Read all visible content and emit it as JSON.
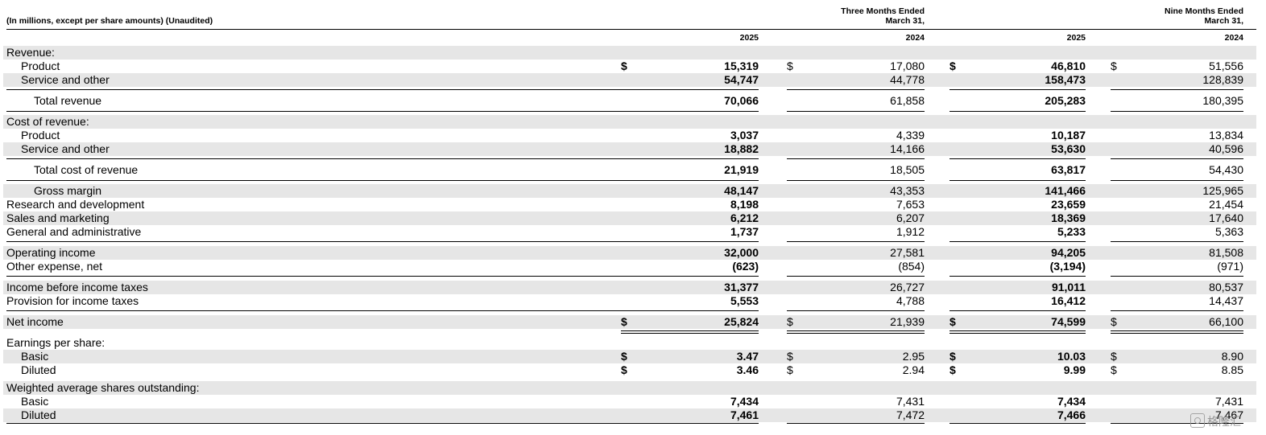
{
  "header": {
    "units_note": "(In millions, except per share amounts) (Unaudited)",
    "three_months": "Three Months Ended",
    "nine_months": "Nine Months Ended",
    "period_end": "March 31,",
    "years": [
      "2025",
      "2024",
      "2025",
      "2024"
    ]
  },
  "rows": [
    {
      "label": "Revenue:",
      "values": [
        "",
        "",
        "",
        ""
      ],
      "dollar": false
    },
    {
      "label": "Product",
      "values": [
        "15,319",
        "17,080",
        "46,810",
        "51,556"
      ],
      "dollar": true
    },
    {
      "label": "Service and other",
      "values": [
        "54,747",
        "44,778",
        "158,473",
        "128,839"
      ],
      "dollar": false
    },
    {
      "label": "Total revenue",
      "values": [
        "70,066",
        "61,858",
        "205,283",
        "180,395"
      ],
      "dollar": false
    },
    {
      "label": "Cost of revenue:",
      "values": [
        "",
        "",
        "",
        ""
      ],
      "dollar": false
    },
    {
      "label": "Product",
      "values": [
        "3,037",
        "4,339",
        "10,187",
        "13,834"
      ],
      "dollar": false
    },
    {
      "label": "Service and other",
      "values": [
        "18,882",
        "14,166",
        "53,630",
        "40,596"
      ],
      "dollar": false
    },
    {
      "label": "Total cost of revenue",
      "values": [
        "21,919",
        "18,505",
        "63,817",
        "54,430"
      ],
      "dollar": false
    },
    {
      "label": "Gross margin",
      "values": [
        "48,147",
        "43,353",
        "141,466",
        "125,965"
      ],
      "dollar": false
    },
    {
      "label": "Research and development",
      "values": [
        "8,198",
        "7,653",
        "23,659",
        "21,454"
      ],
      "dollar": false
    },
    {
      "label": "Sales and marketing",
      "values": [
        "6,212",
        "6,207",
        "18,369",
        "17,640"
      ],
      "dollar": false
    },
    {
      "label": "General and administrative",
      "values": [
        "1,737",
        "1,912",
        "5,233",
        "5,363"
      ],
      "dollar": false
    },
    {
      "label": "Operating income",
      "values": [
        "32,000",
        "27,581",
        "94,205",
        "81,508"
      ],
      "dollar": false
    },
    {
      "label": "Other expense, net",
      "values": [
        "(623)",
        "(854)",
        "(3,194)",
        "(971)"
      ],
      "dollar": false
    },
    {
      "label": "Income before income taxes",
      "values": [
        "31,377",
        "26,727",
        "91,011",
        "80,537"
      ],
      "dollar": false
    },
    {
      "label": "Provision for income taxes",
      "values": [
        "5,553",
        "4,788",
        "16,412",
        "14,437"
      ],
      "dollar": false
    },
    {
      "label": "Net income",
      "values": [
        "25,824",
        "21,939",
        "74,599",
        "66,100"
      ],
      "dollar": true
    },
    {
      "label": "Earnings per share:",
      "values": [
        "",
        "",
        "",
        ""
      ],
      "dollar": false
    },
    {
      "label": "Basic",
      "values": [
        "3.47",
        "2.95",
        "10.03",
        "8.90"
      ],
      "dollar": true
    },
    {
      "label": "Diluted",
      "values": [
        "3.46",
        "2.94",
        "9.99",
        "8.85"
      ],
      "dollar": true
    },
    {
      "label": "Weighted average shares outstanding:",
      "values": [
        "",
        "",
        "",
        ""
      ],
      "dollar": false
    },
    {
      "label": "Basic",
      "values": [
        "7,434",
        "7,431",
        "7,434",
        "7,431"
      ],
      "dollar": false
    },
    {
      "label": "Diluted",
      "values": [
        "7,461",
        "7,472",
        "7,466",
        "7,467"
      ],
      "dollar": false
    }
  ],
  "currency_symbol": "$",
  "watermark": "格隆汇"
}
